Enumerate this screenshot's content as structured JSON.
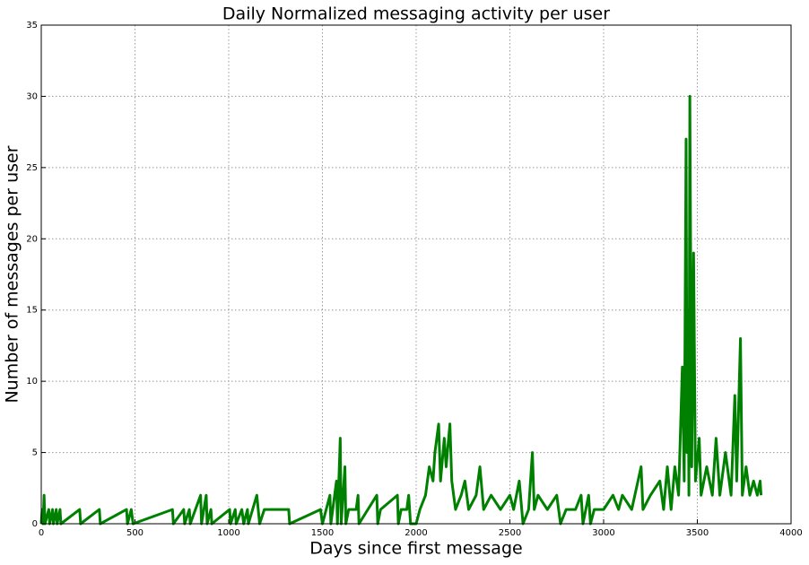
{
  "chart_data": {
    "type": "line",
    "title": "Daily Normalized messaging activity per user",
    "x_label": "Days since first message",
    "y_label": "Number of messages per user",
    "x": [
      0,
      5,
      10,
      15,
      20,
      40,
      45,
      60,
      65,
      80,
      85,
      100,
      105,
      205,
      210,
      310,
      315,
      455,
      460,
      480,
      490,
      700,
      705,
      760,
      765,
      790,
      795,
      850,
      855,
      880,
      885,
      905,
      910,
      1005,
      1010,
      1035,
      1040,
      1070,
      1080,
      1100,
      1105,
      1150,
      1165,
      1190,
      1320,
      1325,
      1490,
      1500,
      1540,
      1545,
      1575,
      1580,
      1595,
      1600,
      1620,
      1625,
      1640,
      1680,
      1690,
      1695,
      1790,
      1795,
      1810,
      1900,
      1905,
      1920,
      1950,
      1960,
      1970,
      2000,
      2020,
      2050,
      2070,
      2090,
      2100,
      2120,
      2130,
      2150,
      2160,
      2180,
      2190,
      2210,
      2240,
      2260,
      2280,
      2320,
      2340,
      2360,
      2400,
      2450,
      2500,
      2520,
      2550,
      2570,
      2600,
      2620,
      2630,
      2650,
      2700,
      2750,
      2770,
      2800,
      2850,
      2880,
      2890,
      2920,
      2930,
      2950,
      3000,
      3050,
      3080,
      3100,
      3150,
      3200,
      3210,
      3250,
      3300,
      3320,
      3340,
      3360,
      3380,
      3400,
      3420,
      3430,
      3440,
      3445,
      3450,
      3455,
      3460,
      3470,
      3480,
      3490,
      3510,
      3520,
      3550,
      3580,
      3600,
      3620,
      3650,
      3680,
      3700,
      3710,
      3730,
      3740,
      3760,
      3780,
      3800,
      3820,
      3835,
      3840
    ],
    "series": [
      {
        "name": "messages per user",
        "color": "#008000",
        "values": [
          0,
          1,
          0,
          2,
          0,
          1,
          0,
          1,
          0,
          1,
          0,
          1,
          0,
          1,
          0,
          1,
          0,
          1,
          0,
          1,
          0,
          1,
          0,
          1,
          0,
          1,
          0,
          2,
          0,
          2,
          0,
          1,
          0,
          1,
          0,
          1,
          0,
          1,
          0,
          1,
          0,
          2,
          0,
          1,
          1,
          0,
          1,
          0,
          2,
          0,
          3,
          0,
          6,
          0,
          4,
          0,
          1,
          1,
          2,
          0,
          2,
          0,
          1,
          2,
          0,
          1,
          1,
          2,
          0,
          0,
          1,
          2,
          4,
          3,
          5,
          7,
          3,
          6,
          4,
          7,
          3,
          1,
          2,
          3,
          1,
          2,
          4,
          1,
          2,
          1,
          2,
          1,
          3,
          0,
          1,
          5,
          1,
          2,
          1,
          2,
          0,
          1,
          1,
          2,
          0,
          2,
          0,
          1,
          1,
          2,
          1,
          2,
          1,
          4,
          1,
          2,
          3,
          1,
          4,
          1,
          4,
          2,
          11,
          3,
          27,
          5,
          15,
          2,
          30,
          4,
          19,
          3,
          6,
          2,
          4,
          2,
          6,
          2,
          5,
          2,
          9,
          3,
          13,
          2,
          4,
          2,
          3,
          2,
          3,
          2
        ]
      }
    ],
    "xlim": [
      0,
      4000
    ],
    "xticks": [
      0,
      500,
      1000,
      1500,
      2000,
      2500,
      3000,
      3500,
      4000
    ],
    "ylim": [
      0,
      35
    ],
    "yticks": [
      0,
      5,
      10,
      15,
      20,
      25,
      30,
      35
    ],
    "grid": true
  }
}
